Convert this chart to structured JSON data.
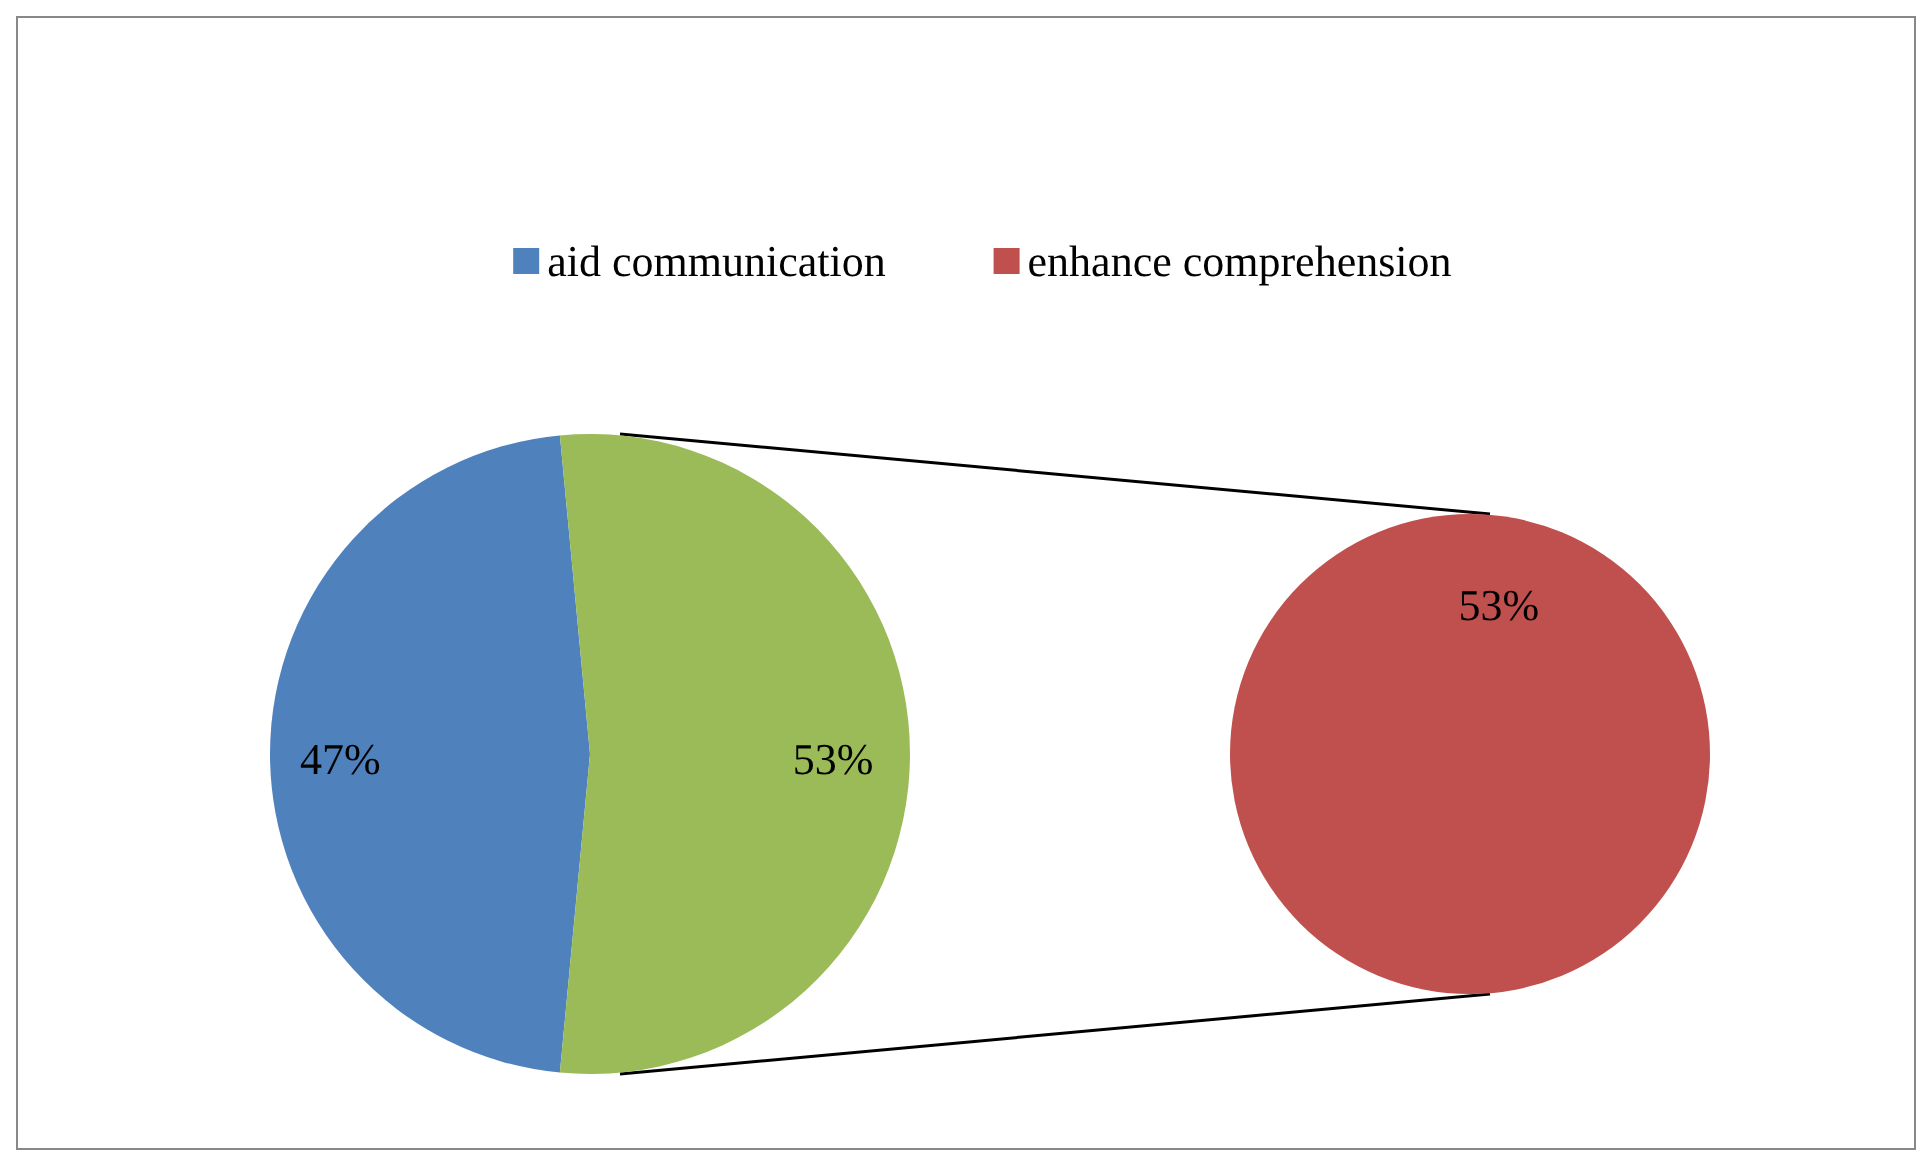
{
  "chart_data": [
    {
      "type": "pie",
      "categories": [
        "aid communication",
        null
      ],
      "values": [
        47,
        53
      ],
      "colors": [
        "#4f81bd",
        "#9bbb59"
      ],
      "value_labels": [
        "47%",
        "53%"
      ],
      "legend": "top"
    },
    {
      "type": "pie",
      "categories": [
        "enhance comprehension"
      ],
      "values": [
        53
      ],
      "colors": [
        "#c0504d"
      ],
      "value_labels": [
        "53%"
      ],
      "legend": "top"
    }
  ]
}
